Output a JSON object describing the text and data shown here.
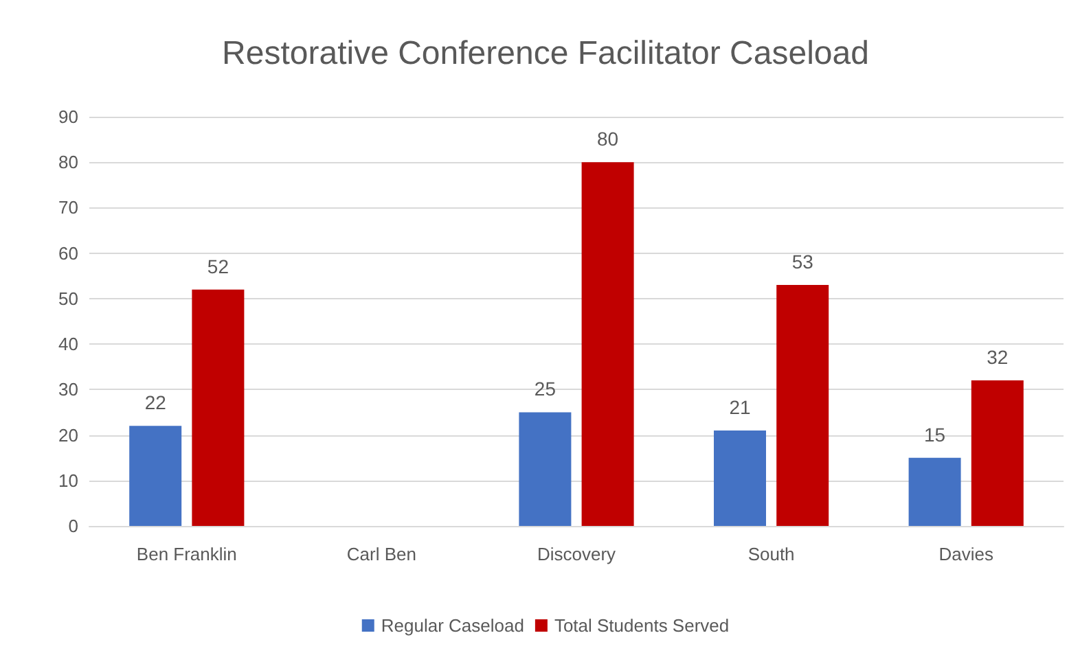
{
  "chart_data": {
    "type": "bar",
    "title": "Restorative Conference Facilitator Caseload",
    "categories": [
      "Ben Franklin",
      "Carl Ben",
      "Discovery",
      "South",
      "Davies"
    ],
    "series": [
      {
        "name": "Regular Caseload",
        "color": "#4472c4",
        "values": [
          22,
          null,
          25,
          21,
          15
        ]
      },
      {
        "name": "Total Students Served",
        "color": "#c00000",
        "values": [
          52,
          null,
          80,
          53,
          32
        ]
      }
    ],
    "ylim": [
      0,
      90
    ],
    "yticks": [
      0,
      10,
      20,
      30,
      40,
      50,
      60,
      70,
      80,
      90
    ],
    "grid": "y",
    "legend": "bottom",
    "data_labels": true
  }
}
